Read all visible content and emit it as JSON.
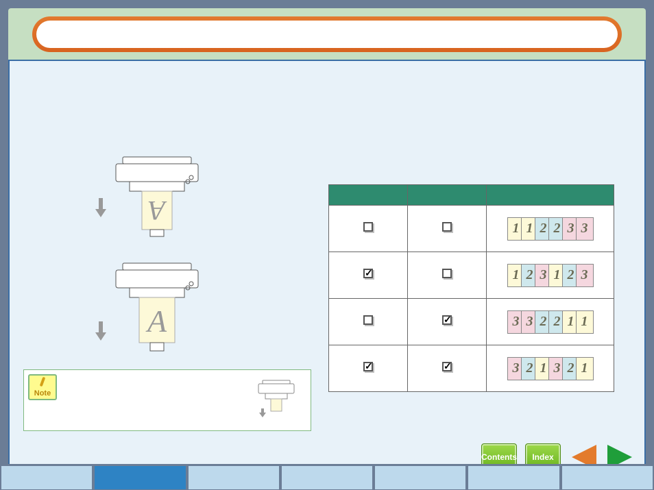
{
  "title": "",
  "note": {
    "label": "Note"
  },
  "nav": {
    "contents": "Contents",
    "index": "Index"
  },
  "colors": {
    "page1": "#fdf9d8",
    "page2": "#cfe8ed",
    "page3": "#f5d7df",
    "table_header": "#2e8b6f",
    "nav_btn": "#7fc92e",
    "prev_arrow": "#e37b2c",
    "next_arrow": "#1f9e3a"
  },
  "table": {
    "rows": [
      {
        "col1_checked": false,
        "col2_checked": false,
        "pages": [
          1,
          1,
          2,
          2,
          3,
          3
        ]
      },
      {
        "col1_checked": true,
        "col2_checked": false,
        "pages": [
          1,
          2,
          3,
          1,
          2,
          3
        ]
      },
      {
        "col1_checked": false,
        "col2_checked": true,
        "pages": [
          3,
          3,
          2,
          2,
          1,
          1
        ]
      },
      {
        "col1_checked": true,
        "col2_checked": true,
        "pages": [
          3,
          2,
          1,
          3,
          2,
          1
        ]
      }
    ]
  },
  "tabs": {
    "count": 7,
    "active_index": 1
  }
}
